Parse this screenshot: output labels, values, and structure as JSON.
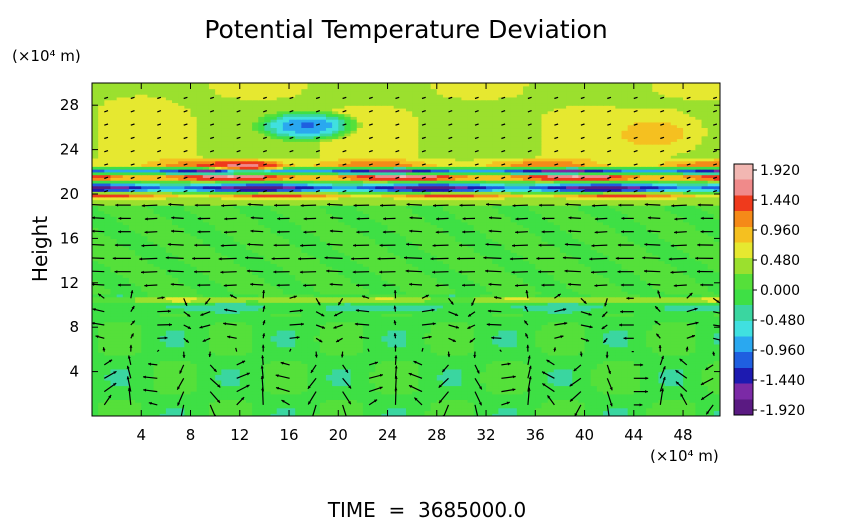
{
  "chart_data": {
    "type": "heatmap",
    "title": "Potential Temperature Deviation",
    "ylabel": "Height",
    "y_unit": "(×10⁴ m)",
    "x_unit": "(×10⁴ m)",
    "footer": "TIME  =  3685000.0",
    "x_ticks": [
      4,
      8,
      12,
      16,
      20,
      24,
      28,
      32,
      36,
      40,
      44,
      48
    ],
    "y_ticks": [
      4,
      8,
      12,
      16,
      20,
      24,
      28
    ],
    "xlim": [
      0,
      51
    ],
    "ylim": [
      0,
      30
    ],
    "colorbar": {
      "ticks": [
        "1.920",
        "1.440",
        "0.960",
        "0.480",
        "0.000",
        "-0.480",
        "-0.960",
        "-1.440",
        "-1.920"
      ],
      "range": [
        -1.92,
        1.92
      ],
      "colors": [
        "#5a1a82",
        "#7b2aa6",
        "#1d1ab0",
        "#1f5fe0",
        "#2aa8f0",
        "#40e0e0",
        "#3ad6a0",
        "#3ee045",
        "#55e03a",
        "#9be02e",
        "#e6e830",
        "#f5c020",
        "#f58a18",
        "#ef3a1c",
        "#f08a8a",
        "#f2b7b2"
      ]
    },
    "bands": [
      {
        "y": 21.6,
        "value": 1.9,
        "thickness": 1.0
      },
      {
        "y": 22.7,
        "value": 1.3,
        "thickness": 0.7
      },
      {
        "y": 20.6,
        "value": -1.9,
        "thickness": 0.8
      },
      {
        "y": 22.1,
        "value": -1.7,
        "thickness": 0.5
      },
      {
        "y": 19.9,
        "value": 1.4,
        "thickness": 0.4
      },
      {
        "y": 9.8,
        "value": -0.4,
        "thickness": 0.7
      },
      {
        "y": 10.5,
        "value": 0.7,
        "thickness": 0.4
      }
    ],
    "features": [
      {
        "x": 17.5,
        "y": 26.2,
        "value": -1.0,
        "rx": 4.5,
        "ry": 1.5
      },
      {
        "x": 12.5,
        "y": 22.6,
        "value": 1.5,
        "rx": 4.0,
        "ry": 0.6
      },
      {
        "x": 46.0,
        "y": 25.5,
        "value": 0.8,
        "rx": 5.0,
        "ry": 2.5
      },
      {
        "x": 4.0,
        "y": 27.0,
        "value": 0.6,
        "rx": 4.0,
        "ry": 2.5
      }
    ]
  }
}
